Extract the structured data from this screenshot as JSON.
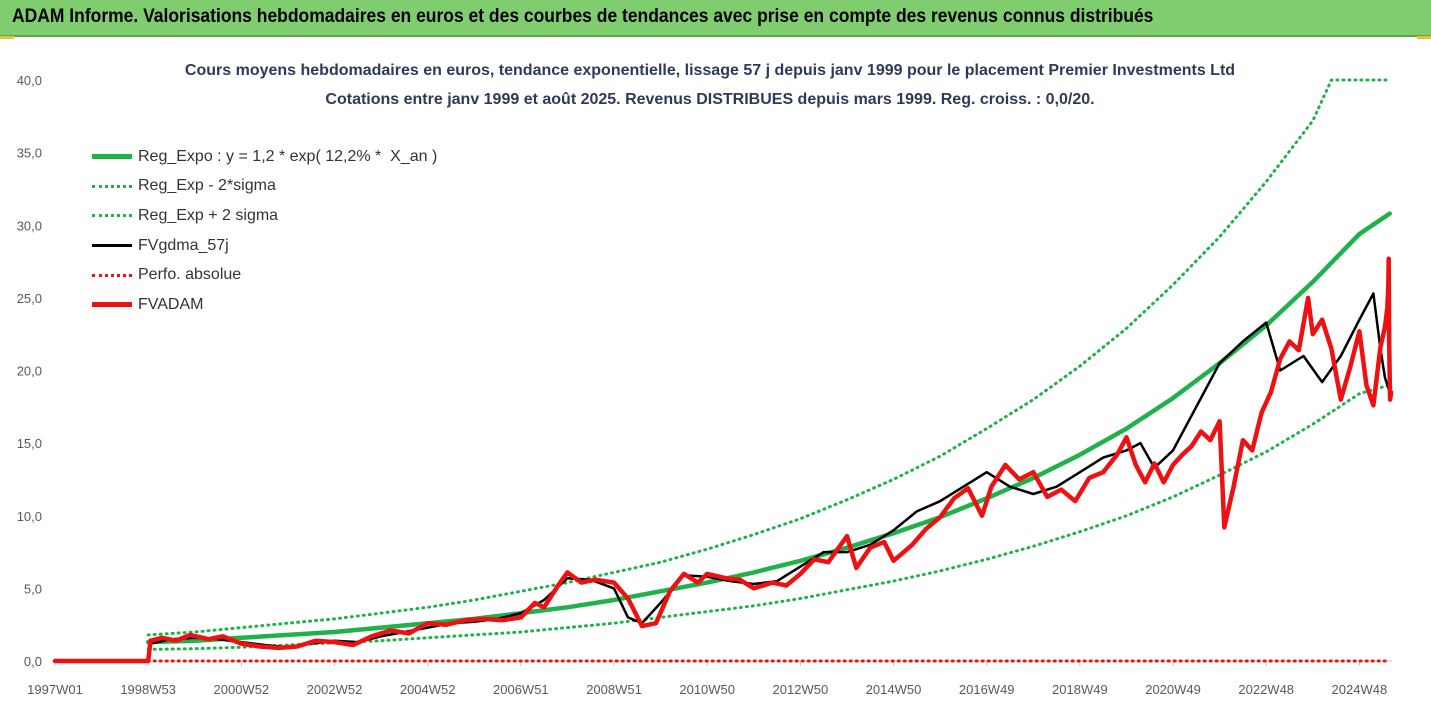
{
  "banner": {
    "title": "ADAM Informe. Valorisations hebdomadaires en euros et des courbes de tendances avec prise en compte des revenus connus distribués"
  },
  "colors": {
    "banner_bg": "#7fcd6e",
    "reg_green": "#1fb24a",
    "fvgdma_black": "#000000",
    "fvadam_red": "#ee1111",
    "perfo_red": "#ee1111"
  },
  "chart_data": {
    "type": "line",
    "title": "Cours moyens hebdomadaires en euros, tendance exponentielle, lissage 57 j depuis janv 1999 pour le placement Premier Investments Ltd",
    "subtitle": "Cotations entre janv 1999 et août 2025.  Revenus DISTRIBUES depuis mars 1999. Reg. croiss. : 0,0/20.",
    "xlabel": "",
    "ylabel": "",
    "ylim": [
      0,
      40
    ],
    "xlim": [
      1997.0,
      2025.7
    ],
    "grid": false,
    "legend_position": "top-left",
    "y_ticks": [
      "0,0",
      "5,0",
      "10,0",
      "15,0",
      "20,0",
      "25,0",
      "30,0",
      "35,0",
      "40,0"
    ],
    "x_ticks": [
      {
        "label": "1997W01",
        "x": 1997.0
      },
      {
        "label": "1998W53",
        "x": 1999.0
      },
      {
        "label": "2000W52",
        "x": 2001.0
      },
      {
        "label": "2002W52",
        "x": 2003.0
      },
      {
        "label": "2004W52",
        "x": 2005.0
      },
      {
        "label": "2006W51",
        "x": 2007.0
      },
      {
        "label": "2008W51",
        "x": 2009.0
      },
      {
        "label": "2010W50",
        "x": 2011.0
      },
      {
        "label": "2012W50",
        "x": 2013.0
      },
      {
        "label": "2014W50",
        "x": 2015.0
      },
      {
        "label": "2016W49",
        "x": 2017.0
      },
      {
        "label": "2018W49",
        "x": 2019.0
      },
      {
        "label": "2020W49",
        "x": 2021.0
      },
      {
        "label": "2022W48",
        "x": 2023.0
      },
      {
        "label": "2024W48",
        "x": 2025.0
      }
    ],
    "series": [
      {
        "name": "Reg_Expo : y = 1,2 * exp( 12,2% *  X_an )",
        "style": "solid-thick",
        "color": "#1fb24a",
        "points": [
          [
            1999.0,
            1.3
          ],
          [
            2000.0,
            1.4
          ],
          [
            2001.0,
            1.6
          ],
          [
            2002.0,
            1.8
          ],
          [
            2003.0,
            2.0
          ],
          [
            2004.0,
            2.3
          ],
          [
            2005.0,
            2.6
          ],
          [
            2006.0,
            2.9
          ],
          [
            2007.0,
            3.3
          ],
          [
            2008.0,
            3.7
          ],
          [
            2009.0,
            4.2
          ],
          [
            2010.0,
            4.8
          ],
          [
            2011.0,
            5.4
          ],
          [
            2012.0,
            6.1
          ],
          [
            2013.0,
            6.9
          ],
          [
            2014.0,
            7.8
          ],
          [
            2015.0,
            8.8
          ],
          [
            2016.0,
            9.9
          ],
          [
            2017.0,
            11.2
          ],
          [
            2018.0,
            12.6
          ],
          [
            2019.0,
            14.2
          ],
          [
            2020.0,
            16.0
          ],
          [
            2021.0,
            18.1
          ],
          [
            2022.0,
            20.5
          ],
          [
            2023.0,
            23.1
          ],
          [
            2024.0,
            26.1
          ],
          [
            2025.0,
            29.4
          ],
          [
            2025.65,
            30.8
          ]
        ]
      },
      {
        "name": "Reg_Exp - 2*sigma",
        "style": "dotted",
        "color": "#1fb24a",
        "points": [
          [
            1999.0,
            0.8
          ],
          [
            2000.0,
            0.85
          ],
          [
            2001.0,
            0.95
          ],
          [
            2002.0,
            1.1
          ],
          [
            2003.0,
            1.25
          ],
          [
            2004.0,
            1.4
          ],
          [
            2005.0,
            1.6
          ],
          [
            2006.0,
            1.8
          ],
          [
            2007.0,
            2.0
          ],
          [
            2008.0,
            2.3
          ],
          [
            2009.0,
            2.6
          ],
          [
            2010.0,
            3.0
          ],
          [
            2011.0,
            3.4
          ],
          [
            2012.0,
            3.8
          ],
          [
            2013.0,
            4.3
          ],
          [
            2014.0,
            4.9
          ],
          [
            2015.0,
            5.5
          ],
          [
            2016.0,
            6.2
          ],
          [
            2017.0,
            7.0
          ],
          [
            2018.0,
            7.9
          ],
          [
            2019.0,
            8.9
          ],
          [
            2020.0,
            10.0
          ],
          [
            2021.0,
            11.3
          ],
          [
            2022.0,
            12.8
          ],
          [
            2023.0,
            14.4
          ],
          [
            2024.0,
            16.3
          ],
          [
            2025.0,
            18.4
          ],
          [
            2025.65,
            19.0
          ]
        ]
      },
      {
        "name": "Reg_Exp + 2 sigma",
        "style": "dotted",
        "color": "#1fb24a",
        "points": [
          [
            1999.0,
            1.8
          ],
          [
            2000.0,
            2.0
          ],
          [
            2001.0,
            2.3
          ],
          [
            2002.0,
            2.6
          ],
          [
            2003.0,
            2.9
          ],
          [
            2004.0,
            3.3
          ],
          [
            2005.0,
            3.7
          ],
          [
            2006.0,
            4.2
          ],
          [
            2007.0,
            4.8
          ],
          [
            2008.0,
            5.4
          ],
          [
            2009.0,
            6.1
          ],
          [
            2010.0,
            6.8
          ],
          [
            2011.0,
            7.7
          ],
          [
            2012.0,
            8.7
          ],
          [
            2013.0,
            9.8
          ],
          [
            2014.0,
            11.1
          ],
          [
            2015.0,
            12.5
          ],
          [
            2016.0,
            14.1
          ],
          [
            2017.0,
            16.0
          ],
          [
            2018.0,
            18.0
          ],
          [
            2019.0,
            20.3
          ],
          [
            2020.0,
            22.9
          ],
          [
            2021.0,
            25.9
          ],
          [
            2022.0,
            29.2
          ],
          [
            2023.0,
            33.0
          ],
          [
            2024.0,
            37.2
          ],
          [
            2024.4,
            40.0
          ],
          [
            2025.65,
            40.0
          ]
        ]
      },
      {
        "name": "FVgdma_57j",
        "style": "solid",
        "color": "#000000",
        "points": [
          [
            1997.0,
            0.0
          ],
          [
            1999.0,
            0.0
          ],
          [
            1999.05,
            1.2
          ],
          [
            1999.5,
            1.5
          ],
          [
            2000.0,
            1.6
          ],
          [
            2000.5,
            1.5
          ],
          [
            2001.0,
            1.3
          ],
          [
            2001.5,
            1.1
          ],
          [
            2002.0,
            0.95
          ],
          [
            2002.5,
            1.2
          ],
          [
            2003.0,
            1.4
          ],
          [
            2003.5,
            1.3
          ],
          [
            2004.0,
            1.7
          ],
          [
            2004.5,
            2.0
          ],
          [
            2005.0,
            2.3
          ],
          [
            2005.5,
            2.6
          ],
          [
            2006.0,
            2.7
          ],
          [
            2006.5,
            2.9
          ],
          [
            2007.0,
            3.3
          ],
          [
            2007.5,
            4.2
          ],
          [
            2008.0,
            5.7
          ],
          [
            2008.5,
            5.6
          ],
          [
            2009.0,
            5.0
          ],
          [
            2009.3,
            3.0
          ],
          [
            2009.6,
            2.6
          ],
          [
            2010.0,
            4.0
          ],
          [
            2010.5,
            5.9
          ],
          [
            2011.0,
            5.8
          ],
          [
            2011.5,
            5.5
          ],
          [
            2012.0,
            5.3
          ],
          [
            2012.5,
            5.5
          ],
          [
            2013.0,
            6.5
          ],
          [
            2013.5,
            7.5
          ],
          [
            2014.0,
            7.5
          ],
          [
            2014.5,
            8.0
          ],
          [
            2015.0,
            9.0
          ],
          [
            2015.5,
            10.3
          ],
          [
            2016.0,
            11.0
          ],
          [
            2016.5,
            12.0
          ],
          [
            2017.0,
            13.0
          ],
          [
            2017.5,
            12.0
          ],
          [
            2018.0,
            11.5
          ],
          [
            2018.5,
            12.0
          ],
          [
            2019.0,
            13.0
          ],
          [
            2019.5,
            14.0
          ],
          [
            2020.0,
            14.5
          ],
          [
            2020.3,
            15.0
          ],
          [
            2020.6,
            13.3
          ],
          [
            2021.0,
            14.5
          ],
          [
            2021.5,
            17.5
          ],
          [
            2022.0,
            20.5
          ],
          [
            2022.5,
            22.0
          ],
          [
            2023.0,
            23.3
          ],
          [
            2023.3,
            20.0
          ],
          [
            2023.8,
            21.0
          ],
          [
            2024.2,
            19.2
          ],
          [
            2024.6,
            21.0
          ],
          [
            2025.0,
            23.5
          ],
          [
            2025.3,
            25.3
          ],
          [
            2025.45,
            21.5
          ],
          [
            2025.55,
            19.5
          ],
          [
            2025.65,
            18.5
          ]
        ]
      },
      {
        "name": "Perfo. absolue",
        "style": "dotted",
        "color": "#ee1111",
        "points": [
          [
            1999.0,
            0.0
          ],
          [
            2025.65,
            0.0
          ]
        ]
      },
      {
        "name": "FVADAM",
        "style": "solid-thick",
        "color": "#ee1111",
        "points": [
          [
            1997.0,
            0.0
          ],
          [
            1999.0,
            0.0
          ],
          [
            1999.05,
            1.4
          ],
          [
            1999.3,
            1.6
          ],
          [
            1999.6,
            1.4
          ],
          [
            1999.9,
            1.8
          ],
          [
            2000.3,
            1.5
          ],
          [
            2000.6,
            1.7
          ],
          [
            2001.0,
            1.2
          ],
          [
            2001.4,
            1.0
          ],
          [
            2001.8,
            0.9
          ],
          [
            2002.2,
            1.0
          ],
          [
            2002.6,
            1.4
          ],
          [
            2003.0,
            1.3
          ],
          [
            2003.4,
            1.1
          ],
          [
            2003.8,
            1.7
          ],
          [
            2004.2,
            2.1
          ],
          [
            2004.6,
            1.9
          ],
          [
            2005.0,
            2.6
          ],
          [
            2005.4,
            2.5
          ],
          [
            2005.8,
            2.8
          ],
          [
            2006.2,
            2.9
          ],
          [
            2006.6,
            2.8
          ],
          [
            2007.0,
            3.0
          ],
          [
            2007.3,
            4.0
          ],
          [
            2007.5,
            3.7
          ],
          [
            2007.8,
            5.2
          ],
          [
            2008.0,
            6.1
          ],
          [
            2008.3,
            5.4
          ],
          [
            2008.6,
            5.6
          ],
          [
            2009.0,
            5.4
          ],
          [
            2009.3,
            4.3
          ],
          [
            2009.6,
            2.4
          ],
          [
            2009.9,
            2.6
          ],
          [
            2010.2,
            4.8
          ],
          [
            2010.5,
            6.0
          ],
          [
            2010.8,
            5.4
          ],
          [
            2011.0,
            6.0
          ],
          [
            2011.4,
            5.7
          ],
          [
            2011.7,
            5.6
          ],
          [
            2012.0,
            5.0
          ],
          [
            2012.4,
            5.4
          ],
          [
            2012.7,
            5.2
          ],
          [
            2013.0,
            6.0
          ],
          [
            2013.3,
            7.0
          ],
          [
            2013.6,
            6.8
          ],
          [
            2014.0,
            8.6
          ],
          [
            2014.2,
            6.4
          ],
          [
            2014.5,
            7.8
          ],
          [
            2014.8,
            8.2
          ],
          [
            2015.0,
            6.9
          ],
          [
            2015.4,
            8.0
          ],
          [
            2015.7,
            9.1
          ],
          [
            2016.0,
            9.9
          ],
          [
            2016.3,
            11.2
          ],
          [
            2016.6,
            11.9
          ],
          [
            2016.9,
            10.0
          ],
          [
            2017.1,
            12.0
          ],
          [
            2017.4,
            13.5
          ],
          [
            2017.7,
            12.5
          ],
          [
            2018.0,
            13.0
          ],
          [
            2018.3,
            11.3
          ],
          [
            2018.6,
            11.8
          ],
          [
            2018.9,
            11.0
          ],
          [
            2019.2,
            12.6
          ],
          [
            2019.5,
            13.0
          ],
          [
            2019.8,
            14.2
          ],
          [
            2020.0,
            15.4
          ],
          [
            2020.2,
            13.5
          ],
          [
            2020.4,
            12.3
          ],
          [
            2020.6,
            13.6
          ],
          [
            2020.8,
            12.3
          ],
          [
            2021.0,
            13.5
          ],
          [
            2021.2,
            14.2
          ],
          [
            2021.4,
            14.8
          ],
          [
            2021.6,
            15.8
          ],
          [
            2021.8,
            15.2
          ],
          [
            2022.0,
            16.5
          ],
          [
            2022.1,
            9.2
          ],
          [
            2022.3,
            12.0
          ],
          [
            2022.5,
            15.2
          ],
          [
            2022.7,
            14.5
          ],
          [
            2022.9,
            17.1
          ],
          [
            2023.1,
            18.5
          ],
          [
            2023.3,
            20.8
          ],
          [
            2023.5,
            22.0
          ],
          [
            2023.7,
            21.4
          ],
          [
            2023.9,
            25.0
          ],
          [
            2024.0,
            22.5
          ],
          [
            2024.2,
            23.5
          ],
          [
            2024.4,
            21.5
          ],
          [
            2024.6,
            18.0
          ],
          [
            2024.8,
            20.2
          ],
          [
            2025.0,
            22.7
          ],
          [
            2025.15,
            19.0
          ],
          [
            2025.3,
            17.6
          ],
          [
            2025.45,
            21.6
          ],
          [
            2025.55,
            23.0
          ],
          [
            2025.6,
            24.3
          ],
          [
            2025.62,
            25.8
          ],
          [
            2025.63,
            27.7
          ],
          [
            2025.64,
            22.0
          ],
          [
            2025.65,
            19.5
          ],
          [
            2025.66,
            18.0
          ],
          [
            2025.68,
            18.5
          ]
        ]
      }
    ]
  }
}
